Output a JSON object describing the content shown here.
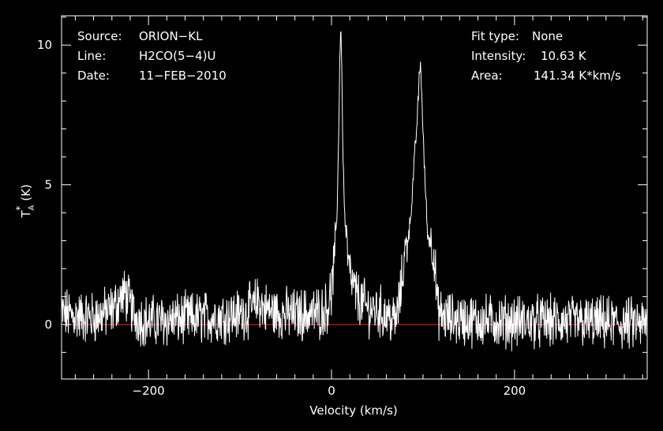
{
  "chart_data": {
    "type": "line",
    "xlabel": "Velocity (km/s)",
    "ylabel": "T*A (K)",
    "ylabel_parts": {
      "main": "T",
      "sub": "A",
      "sup": "*",
      "unit": "(K)"
    },
    "xlim": [
      -295,
      345
    ],
    "ylim": [
      -1.95,
      11.05
    ],
    "xticks": [
      -200,
      0,
      200
    ],
    "xtick_labels": [
      "−200",
      "0",
      "200"
    ],
    "yticks": [
      0,
      5,
      10
    ],
    "ytick_labels": [
      "0",
      "5",
      "10"
    ],
    "baseline": {
      "y": 0,
      "color": "#ff2020"
    },
    "series": [
      {
        "color": "#ffffff",
        "style": "noisy-spectrum",
        "x": [
          -295,
          -280,
          -260,
          -240,
          -232,
          -225,
          -215,
          -200,
          -180,
          -160,
          -140,
          -120,
          -100,
          -85,
          -80,
          -75,
          -60,
          -40,
          -20,
          -10,
          -5,
          0,
          3,
          6,
          8,
          9,
          10,
          11,
          12,
          14,
          17,
          20,
          25,
          30,
          40,
          50,
          60,
          70,
          75,
          80,
          85,
          88,
          90,
          93,
          95,
          96,
          97,
          98,
          99,
          101,
          103,
          105,
          108,
          112,
          116,
          120,
          130,
          150,
          200,
          250,
          300,
          345
        ],
        "y": [
          0.4,
          0.3,
          0.25,
          0.5,
          0.9,
          1.1,
          0.3,
          0.1,
          0.15,
          0.2,
          0.25,
          0.3,
          0.35,
          0.6,
          0.9,
          0.6,
          0.4,
          0.35,
          0.4,
          0.45,
          0.6,
          1.2,
          2.2,
          4.0,
          7.0,
          9.5,
          10.63,
          9.8,
          7.0,
          4.2,
          2.6,
          1.8,
          1.2,
          0.9,
          0.55,
          0.5,
          0.35,
          0.1,
          1.0,
          2.5,
          3.4,
          4.5,
          5.6,
          7.0,
          8.2,
          8.9,
          9.35,
          8.9,
          7.8,
          6.0,
          4.6,
          3.2,
          3.0,
          2.6,
          0.5,
          0.3,
          0.2,
          0.15,
          0.1,
          0.1,
          0.05,
          0.0
        ]
      }
    ]
  },
  "annotations_left": [
    {
      "label": "Source:",
      "value": "ORION−KL"
    },
    {
      "label": "Line:",
      "value": "H2CO(5−4)U"
    },
    {
      "label": "Date:",
      "value": "11−FEB−2010"
    }
  ],
  "annotations_right": [
    {
      "label": "Fit type:",
      "value": "None"
    },
    {
      "label": "Intensity:",
      "value": "10.63 K"
    },
    {
      "label": "Area:",
      "value": "141.34 K*km/s"
    }
  ]
}
